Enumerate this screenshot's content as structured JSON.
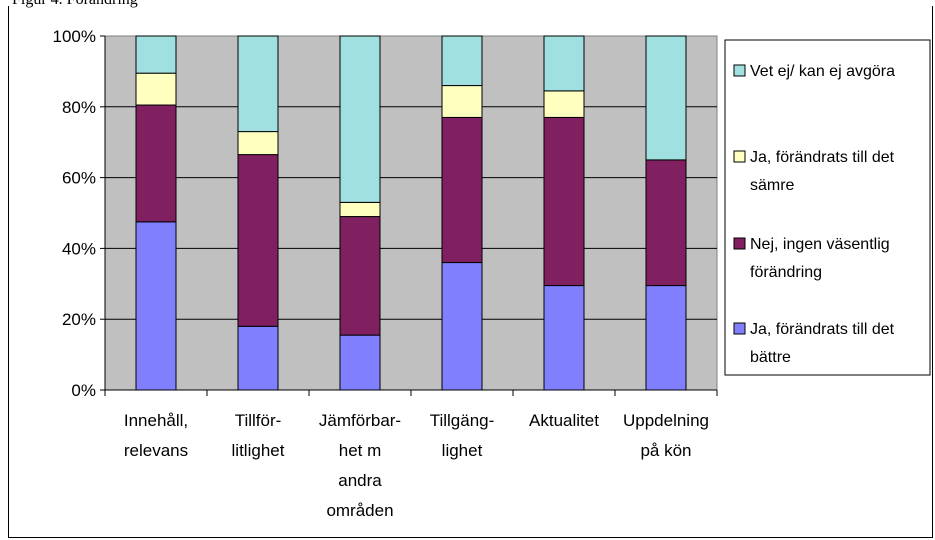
{
  "header": {
    "caption": "Figur 4. Förändring"
  },
  "chart_data": {
    "type": "bar",
    "stacked": true,
    "percent_stacked": true,
    "categories": [
      [
        "Innehåll,",
        "relevans"
      ],
      [
        "Tillför-",
        "litlighet"
      ],
      [
        "Jämförbar-",
        "het m",
        "andra",
        "områden"
      ],
      [
        "Tillgäng-",
        "lighet"
      ],
      [
        "Aktualitet"
      ],
      [
        "Uppdelning",
        "på kön"
      ]
    ],
    "series": [
      {
        "name": "Ja, förändrats till det bättre",
        "legend_lines": [
          "Ja, förändrats till det",
          "bättre"
        ],
        "color": "#8080ff",
        "values": [
          47.5,
          18,
          15.5,
          36,
          29.5,
          29.5
        ]
      },
      {
        "name": "Nej, ingen väsentlig förändring",
        "legend_lines": [
          "Nej, ingen väsentlig",
          "förändring"
        ],
        "color": "#802060",
        "values": [
          33,
          48.5,
          33.5,
          41,
          47.5,
          35.5
        ]
      },
      {
        "name": "Ja, förändrats till det sämre",
        "legend_lines": [
          "Ja, förändrats till det",
          "sämre"
        ],
        "color": "#ffffc0",
        "values": [
          9,
          6.5,
          4,
          9,
          7.5,
          0
        ]
      },
      {
        "name": "Vet ej/ kan ej avgöra",
        "legend_lines": [
          "Vet ej/ kan ej avgöra"
        ],
        "color": "#a0e0e0",
        "values": [
          10.5,
          27,
          47,
          14,
          15.5,
          35
        ]
      }
    ],
    "y_ticks": [
      "0%",
      "20%",
      "40%",
      "60%",
      "80%",
      "100%"
    ],
    "ylim": [
      0,
      100
    ],
    "grid": true,
    "plot_background": "#c0c0c0",
    "legend_position": "right"
  }
}
